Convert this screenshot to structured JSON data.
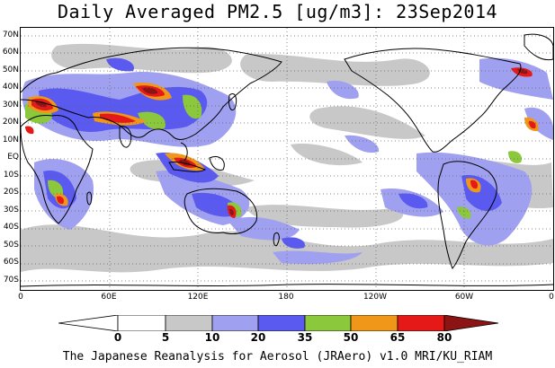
{
  "title": "Daily Averaged PM2.5 [ug/m3]: 23Sep2014",
  "footer": "The Japanese Reanalysis for Aerosol (JRAero) v1.0 MRI/KU_RIAM",
  "latitude_labels": [
    "70N",
    "60N",
    "50N",
    "40N",
    "30N",
    "20N",
    "10N",
    "EQ",
    "10S",
    "20S",
    "30S",
    "40S",
    "50S",
    "60S",
    "70S"
  ],
  "longitude_labels": [
    "0",
    "60E",
    "120E",
    "180",
    "120W",
    "60W",
    "0"
  ],
  "colorbar": {
    "tick_labels": [
      "0",
      "5",
      "10",
      "20",
      "35",
      "50",
      "65",
      "80"
    ],
    "colors": [
      "#ffffff",
      "#c8c8c8",
      "#a0a0f0",
      "#5a5af0",
      "#8cc83c",
      "#f09619",
      "#e61919",
      "#8c1414"
    ]
  },
  "grid": "dotted",
  "projection": "cylindrical equidistant, 0° to 360°, 75S to 75N"
}
